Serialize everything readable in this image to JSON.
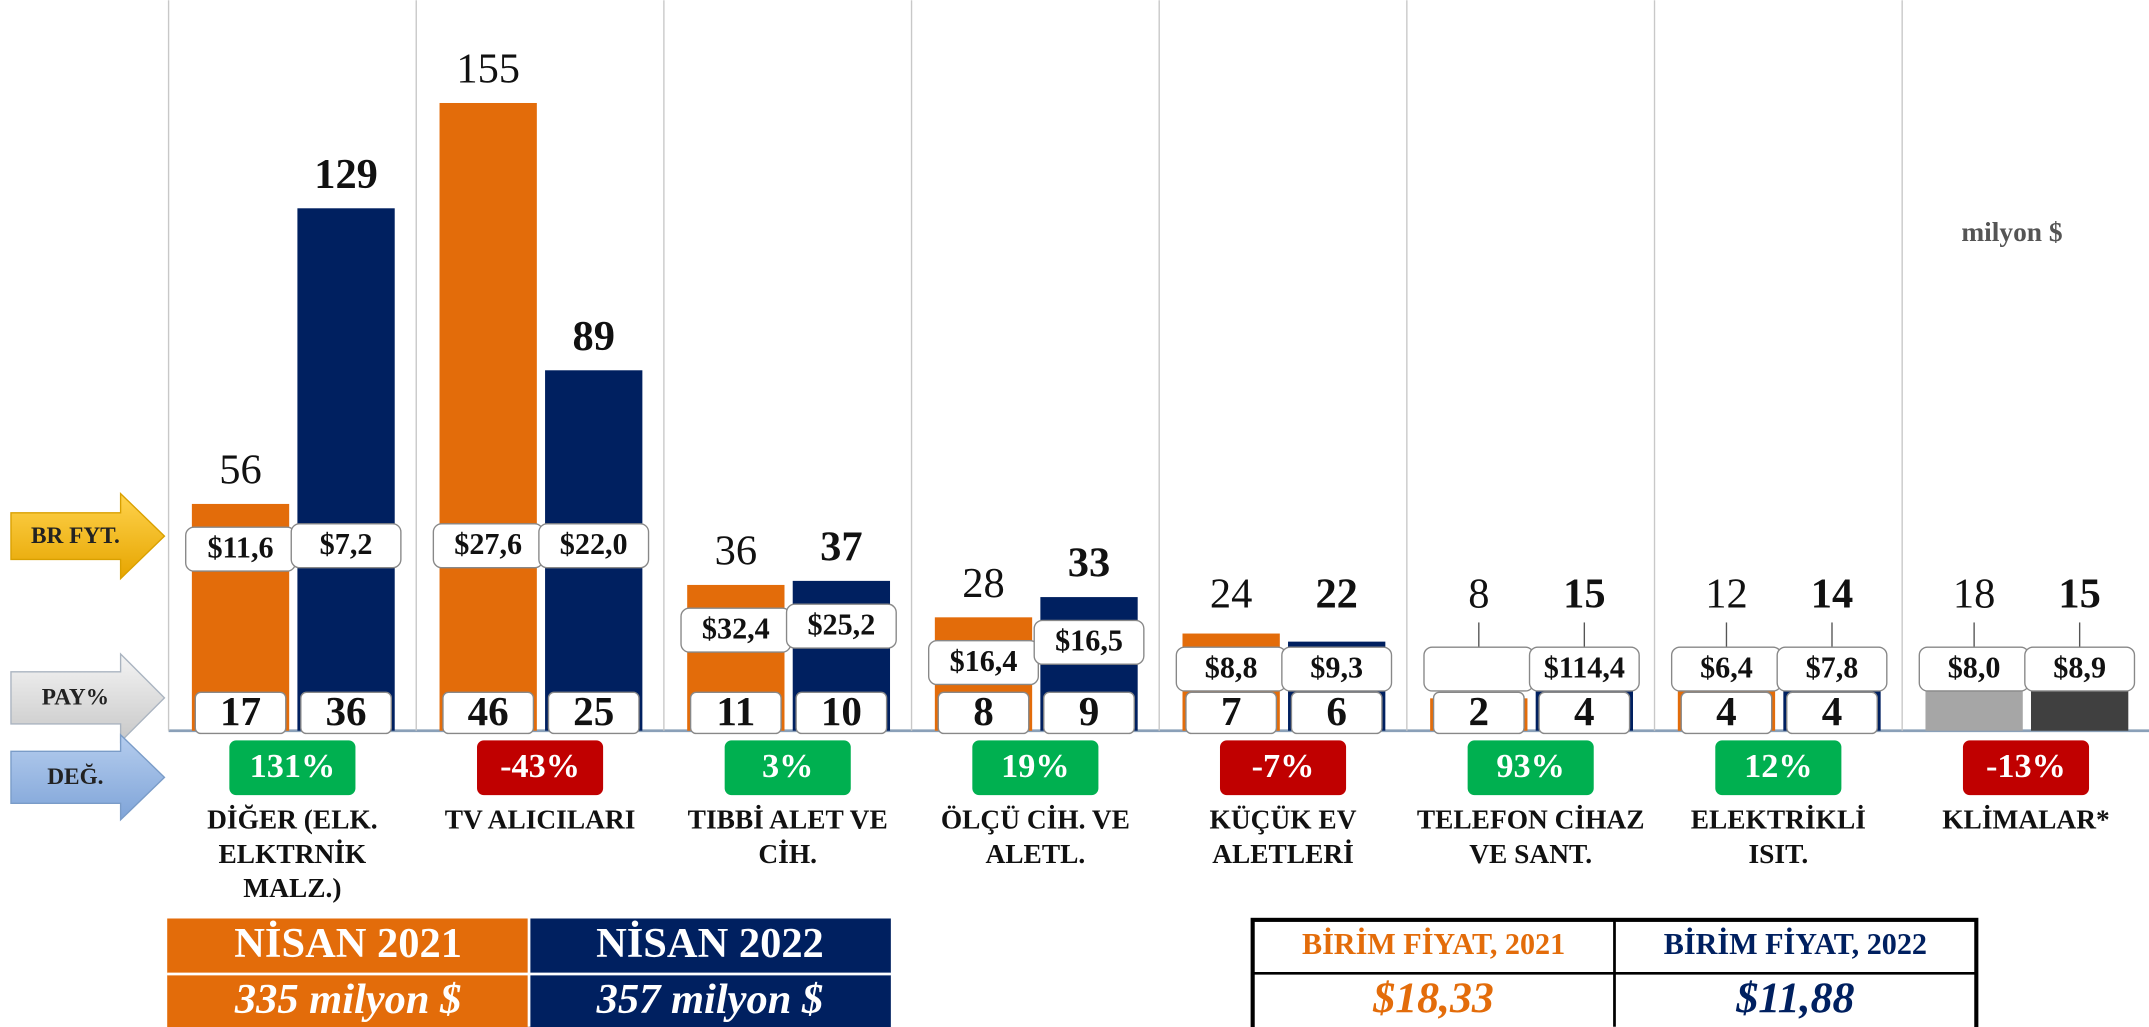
{
  "chart_data": {
    "type": "bar",
    "unit_note": "milyon $",
    "row_labels": [
      "BR FYT.",
      "PAY%",
      "DEĞ."
    ],
    "categories": [
      "DİĞER (ELK. ELKTRNİK MALZ.)",
      "TV ALICILARI",
      "TIBBİ ALET VE CİH.",
      "ÖLÇÜ CİH. VE ALETL.",
      "KÜÇÜK EV ALETLERİ",
      "TELEFON CİHAZ VE SANT.",
      "ELEKTRİKLİ ISIT.",
      "KLİMALAR*"
    ],
    "series": [
      {
        "name": "NİSAN 2021",
        "color": "#e36c0a",
        "colors": [
          "#e36c0a",
          "#e36c0a",
          "#e36c0a",
          "#e36c0a",
          "#e36c0a",
          "#e36c0a",
          "#e36c0a",
          "#a6a6a6"
        ],
        "values": [
          56,
          155,
          36,
          28,
          24,
          8,
          12,
          18
        ],
        "unit_price": {
          "values": [
            11.6,
            27.6,
            32.4,
            16.4,
            8.8,
            null,
            6.4,
            8.0
          ],
          "value_labels": [
            "$11,6",
            "$27,6",
            "$32,4",
            "$16,4",
            "$8,8",
            null,
            "$6,4",
            "$8,0"
          ]
        },
        "share": {
          "values": [
            17,
            46,
            11,
            8,
            7,
            2,
            4,
            null
          ]
        },
        "total": "335 milyon $"
      },
      {
        "name": "NİSAN 2022",
        "color": "#002060",
        "colors": [
          "#002060",
          "#002060",
          "#002060",
          "#002060",
          "#002060",
          "#002060",
          "#002060",
          "#404040"
        ],
        "values": [
          129,
          89,
          37,
          33,
          22,
          15,
          14,
          15
        ],
        "unit_price": {
          "values": [
            7.2,
            22.0,
            25.2,
            16.5,
            9.3,
            114.4,
            7.8,
            8.9
          ],
          "value_labels": [
            "$7,2",
            "$22,0",
            "$25,2",
            "$16,5",
            "$9,3",
            "$114,4",
            "$7,8",
            "$8,9"
          ]
        },
        "share": {
          "values": [
            36,
            25,
            10,
            9,
            6,
            4,
            4,
            null
          ]
        },
        "total": "357 milyon $"
      }
    ],
    "change": {
      "values": [
        131,
        -43,
        3,
        19,
        -7,
        93,
        12,
        -13
      ],
      "value_labels": [
        "131%",
        "-43%",
        "3%",
        "19%",
        "-7%",
        "93%",
        "12%",
        "-13%"
      ],
      "positive_color": "#00b050",
      "negative_color": "#c00000"
    },
    "unit_price_table": {
      "headers": [
        "BİRİM FİYAT, 2021",
        "BİRİM FİYAT, 2022"
      ],
      "values": [
        "$18,33",
        "$11,88"
      ]
    }
  }
}
